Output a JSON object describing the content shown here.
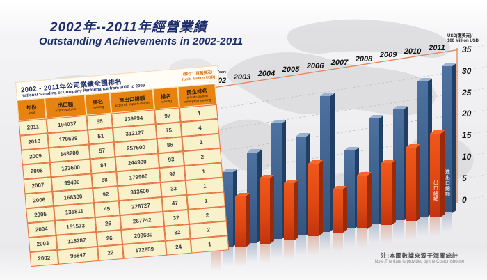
{
  "page": {
    "title_cn": "2002年--2011年經營業績",
    "title_en": "Outstanding Achievements in 2002-2011"
  },
  "colors": {
    "title_navy": "#1c2d6b",
    "table_header_orange": "#e8830f",
    "table_body_yellow": "#f9f1c9",
    "table_border_orange": "#e2703a",
    "bar_orange": "#df4811",
    "bar_blue": "#3a5f8f",
    "axis_line_orange": "#e0875a"
  },
  "table": {
    "title_cn": "2002 - 2011年公司業績全國排名",
    "title_en": "National Standing of Company Performance from 2000 to 2009",
    "unit_cn": "（單位：百萬美元）",
    "unit_en": "(unit: Million USD)",
    "columns": [
      {
        "cn": "年份",
        "en": "year"
      },
      {
        "cn": "出口額",
        "en": "export volume"
      },
      {
        "cn": "排名",
        "en": "ranking"
      },
      {
        "cn": "進出口總額",
        "en": "export & import volume"
      },
      {
        "cn": "排名",
        "en": "ranking"
      },
      {
        "cn": "民企排名",
        "en": "private-owned enterprise ranking"
      }
    ],
    "rows": [
      [
        "2011",
        "194037",
        "55",
        "339994",
        "97",
        "4"
      ],
      [
        "2010",
        "170629",
        "51",
        "312127",
        "75",
        "4"
      ],
      [
        "2009",
        "143200",
        "57",
        "257600",
        "86",
        "1"
      ],
      [
        "2008",
        "123600",
        "84",
        "244900",
        "93",
        "2"
      ],
      [
        "2007",
        "99400",
        "88",
        "179900",
        "97",
        "1"
      ],
      [
        "2006",
        "168300",
        "92",
        "313600",
        "33",
        "1"
      ],
      [
        "2005",
        "131811",
        "45",
        "228727",
        "47",
        "1"
      ],
      [
        "2004",
        "151573",
        "26",
        "267742",
        "32",
        "2"
      ],
      [
        "2003",
        "118287",
        "26",
        "208680",
        "32",
        "2"
      ],
      [
        "2002",
        "96847",
        "22",
        "172659",
        "24",
        "1"
      ]
    ]
  },
  "chart_data": {
    "type": "bar",
    "title": "2002年--2011年經營業績 / Outstanding Achievements in 2002-2011",
    "categories": [
      "2002",
      "2003",
      "2004",
      "2005",
      "2006",
      "2007",
      "2008",
      "2009",
      "2010",
      "2011"
    ],
    "series": [
      {
        "name": "出口總額",
        "role": "export-total",
        "color": "#df4811",
        "values_million_usd": [
          96847,
          118287,
          151573,
          131811,
          168300,
          99400,
          123600,
          143200,
          170629,
          194037
        ]
      },
      {
        "name": "進出口總額",
        "role": "export-import-total",
        "color": "#3a5f8f",
        "values_million_usd": [
          172659,
          208680,
          267742,
          228727,
          313600,
          179900,
          244900,
          257600,
          312127,
          339994
        ]
      }
    ],
    "xlabel": "(年份/Year)",
    "ylabel_line1": "USD(億美元)/",
    "ylabel_line2": "100 Million USD",
    "yticks": [
      0,
      5,
      10,
      15,
      20,
      25,
      30,
      35
    ],
    "ylim": [
      0,
      35
    ],
    "axis_unit_divisor_from_million": 10000,
    "grid": "dashed",
    "legend_position": "vertical labels on 2011 bars"
  },
  "footnote": {
    "note_cn": "注:本圖數據來源于海關統計",
    "note_en": "Note:The date is provided by the Customshouse"
  }
}
